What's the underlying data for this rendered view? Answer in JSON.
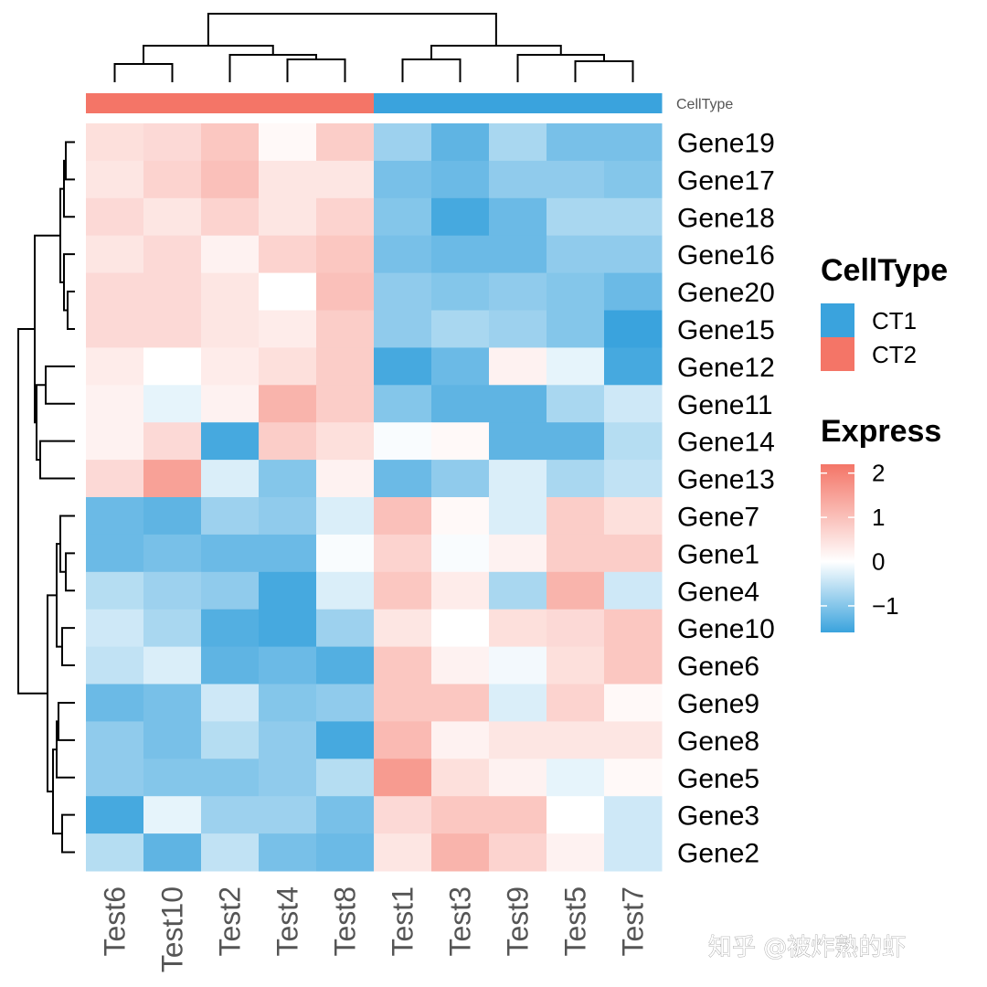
{
  "chart_data": {
    "type": "heatmap",
    "columns": [
      "Test6",
      "Test10",
      "Test2",
      "Test4",
      "Test8",
      "Test1",
      "Test3",
      "Test9",
      "Test5",
      "Test7"
    ],
    "rows": [
      "Gene19",
      "Gene17",
      "Gene18",
      "Gene16",
      "Gene20",
      "Gene15",
      "Gene12",
      "Gene11",
      "Gene14",
      "Gene13",
      "Gene7",
      "Gene1",
      "Gene4",
      "Gene10",
      "Gene6",
      "Gene9",
      "Gene8",
      "Gene5",
      "Gene3",
      "Gene2"
    ],
    "values": [
      [
        0.5,
        0.6,
        0.9,
        0.1,
        0.8,
        -0.8,
        -1.3,
        -0.7,
        -1.1,
        -1.1
      ],
      [
        0.4,
        0.7,
        1.0,
        0.4,
        0.4,
        -1.1,
        -1.2,
        -0.9,
        -0.9,
        -1.0
      ],
      [
        0.6,
        0.4,
        0.7,
        0.4,
        0.7,
        -1.0,
        -1.5,
        -1.2,
        -0.7,
        -0.7
      ],
      [
        0.4,
        0.6,
        0.2,
        0.7,
        0.9,
        -1.1,
        -1.2,
        -1.2,
        -0.9,
        -0.9
      ],
      [
        0.6,
        0.6,
        0.4,
        0.0,
        1.0,
        -0.9,
        -1.0,
        -0.9,
        -1.0,
        -1.2
      ],
      [
        0.6,
        0.6,
        0.4,
        0.3,
        0.8,
        -0.9,
        -0.7,
        -0.8,
        -1.0,
        -1.6
      ],
      [
        0.3,
        0.0,
        0.3,
        0.5,
        0.8,
        -1.5,
        -1.2,
        0.2,
        -0.2,
        -1.5
      ],
      [
        0.2,
        -0.2,
        0.2,
        1.2,
        0.8,
        -1.0,
        -1.3,
        -1.3,
        -0.7,
        -0.4
      ],
      [
        0.2,
        0.6,
        -1.5,
        0.8,
        0.5,
        -0.05,
        0.1,
        -1.3,
        -1.3,
        -0.6
      ],
      [
        0.6,
        1.5,
        -0.3,
        -1.0,
        0.2,
        -1.2,
        -0.9,
        -0.3,
        -0.7,
        -0.5
      ],
      [
        -1.2,
        -1.3,
        -0.8,
        -0.9,
        -0.3,
        1.0,
        0.1,
        -0.3,
        0.8,
        0.5
      ],
      [
        -1.2,
        -1.1,
        -1.2,
        -1.2,
        -0.05,
        0.7,
        -0.05,
        0.2,
        0.8,
        0.8
      ],
      [
        -0.6,
        -0.8,
        -0.9,
        -1.5,
        -0.3,
        0.9,
        0.3,
        -0.7,
        1.2,
        -0.4
      ],
      [
        -0.4,
        -0.7,
        -1.4,
        -1.5,
        -0.8,
        0.4,
        0.0,
        0.5,
        0.6,
        0.9
      ],
      [
        -0.5,
        -0.3,
        -1.3,
        -1.2,
        -1.4,
        0.9,
        0.2,
        -0.1,
        0.5,
        0.9
      ],
      [
        -1.2,
        -1.1,
        -0.4,
        -1.0,
        -0.9,
        0.9,
        0.9,
        -0.3,
        0.7,
        0.1
      ],
      [
        -0.9,
        -1.1,
        -0.6,
        -0.9,
        -1.5,
        1.1,
        0.2,
        0.4,
        0.4,
        0.4
      ],
      [
        -0.9,
        -1.0,
        -1.0,
        -0.9,
        -0.6,
        1.6,
        0.5,
        0.2,
        -0.2,
        0.1
      ],
      [
        -1.5,
        -0.2,
        -0.8,
        -0.8,
        -1.1,
        0.6,
        0.9,
        0.9,
        0.0,
        -0.4
      ],
      [
        -0.6,
        -1.3,
        -0.5,
        -1.1,
        -1.2,
        0.4,
        1.2,
        0.7,
        0.2,
        -0.4
      ]
    ],
    "color_scale": {
      "min": -1.6,
      "max": 2.2,
      "low": "#3AA3DD",
      "mid": "#FFFFFF",
      "high": "#F47567"
    },
    "annotation": {
      "label": "CellType",
      "groups": [
        "CT2",
        "CT2",
        "CT2",
        "CT2",
        "CT2",
        "CT1",
        "CT1",
        "CT1",
        "CT1",
        "CT1"
      ]
    },
    "legend": {
      "celltype_title": "CellType",
      "celltype_items": [
        {
          "label": "CT1",
          "color": "#3AA3DD"
        },
        {
          "label": "CT2",
          "color": "#F47567"
        }
      ],
      "express_title": "Express",
      "express_ticks": [
        {
          "value": 2,
          "label": "2"
        },
        {
          "value": 1,
          "label": "1"
        },
        {
          "value": 0,
          "label": "0"
        },
        {
          "value": -1,
          "label": "−1"
        }
      ]
    }
  },
  "watermark": "知乎 @被炸熟的虾"
}
